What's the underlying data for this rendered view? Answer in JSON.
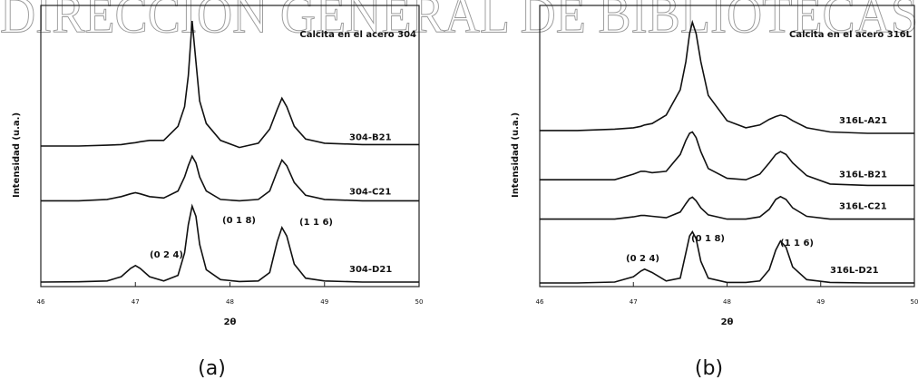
{
  "watermark": "DIRECCION GENERAL DE BIBLIOTECAS",
  "chart_data": [
    {
      "type": "line",
      "title": "Calcita en el acero 304",
      "caption": "(a)",
      "x_label": "2θ",
      "y_label": "Intensidad (u.a.)",
      "xlim": [
        46,
        50
      ],
      "xticks": [
        46,
        47,
        48,
        49,
        50
      ],
      "ylim": [
        0,
        100
      ],
      "annotations": [
        "(0 2 4)",
        "(0 1 8)",
        "(1 1 6)"
      ],
      "x": [
        46,
        46.4,
        46.7,
        46.85,
        46.95,
        47.0,
        47.05,
        47.15,
        47.3,
        47.45,
        47.52,
        47.56,
        47.6,
        47.64,
        47.68,
        47.75,
        47.9,
        48.1,
        48.3,
        48.42,
        48.5,
        48.55,
        48.6,
        48.68,
        48.8,
        49.0,
        49.4,
        50
      ],
      "series": [
        {
          "name": "304-B21",
          "color": "#111111",
          "values": [
            50,
            50,
            50.3,
            50.5,
            51,
            51.2,
            51.5,
            52,
            52,
            57,
            64,
            75,
            94.5,
            80,
            66,
            58,
            52,
            49.5,
            51,
            56,
            63,
            67,
            64,
            57,
            52.5,
            51,
            50.5,
            50.5
          ]
        },
        {
          "name": "304-C21",
          "color": "#111111",
          "values": [
            30.5,
            30.5,
            31,
            32,
            33,
            33.4,
            33,
            32,
            31.5,
            34,
            39,
            43,
            46.4,
            44,
            39,
            34,
            31,
            30.5,
            31,
            34,
            41,
            45,
            43,
            37,
            32.5,
            31,
            30.5,
            30.5
          ]
        },
        {
          "name": "304-D21",
          "color": "#111111",
          "values": [
            1.6,
            1.7,
            2,
            3.5,
            6.5,
            7.5,
            6.5,
            3.5,
            2,
            4,
            12,
            22,
            28.6,
            25,
            15,
            6,
            2.5,
            1.8,
            2,
            5,
            16,
            21,
            18,
            8,
            3,
            2,
            1.6,
            1.6
          ]
        }
      ]
    },
    {
      "type": "line",
      "title": "Calcita en el acero 316L",
      "caption": "(b)",
      "x_label": "2θ",
      "y_label": "Intensidad (u.a.)",
      "xlim": [
        46,
        50
      ],
      "xticks": [
        46,
        47,
        48,
        49,
        50
      ],
      "ylim": [
        0,
        100
      ],
      "annotations": [
        "(0 2 4)",
        "(0 1 8)",
        "(1 1 6)"
      ],
      "x": [
        46,
        46.4,
        46.8,
        47.0,
        47.08,
        47.12,
        47.2,
        47.35,
        47.5,
        47.56,
        47.6,
        47.63,
        47.67,
        47.72,
        47.8,
        48.0,
        48.2,
        48.35,
        48.45,
        48.52,
        48.57,
        48.63,
        48.7,
        48.85,
        49.1,
        49.5,
        50
      ],
      "series": [
        {
          "name": "316L-A21",
          "color": "#111111",
          "values": [
            55.5,
            55.5,
            56,
            56.5,
            57,
            57.5,
            58,
            61,
            70,
            80,
            90,
            94,
            90,
            80,
            68,
            59,
            56.5,
            57.5,
            59.5,
            60.5,
            61,
            60.5,
            59,
            56.5,
            55,
            54.5,
            54.5
          ]
        },
        {
          "name": "316L-B21",
          "color": "#111111",
          "values": [
            38,
            38,
            38,
            40,
            41,
            41,
            40.5,
            41,
            47,
            52,
            54.5,
            55,
            53,
            48,
            42,
            38.5,
            38,
            40,
            44,
            47,
            48,
            47,
            44,
            39.5,
            36.5,
            36,
            36
          ]
        },
        {
          "name": "316L-C21",
          "color": "#111111",
          "values": [
            24,
            24,
            24,
            24.8,
            25.3,
            25.3,
            25,
            24.5,
            26.5,
            29.5,
            31.3,
            31.8,
            30.5,
            28,
            25.5,
            24,
            24,
            24.8,
            27.5,
            31,
            32,
            31,
            28,
            25,
            24,
            24,
            24
          ]
        },
        {
          "name": "316L-D21",
          "color": "#111111",
          "values": [
            1.3,
            1.3,
            1.6,
            3.5,
            5.5,
            6.2,
            5,
            2,
            3,
            12,
            18,
            19.5,
            17,
            9,
            3,
            1.5,
            1.5,
            2,
            6,
            13,
            16.2,
            14,
            7,
            2.5,
            1.5,
            1.3,
            1.3
          ]
        }
      ]
    }
  ]
}
